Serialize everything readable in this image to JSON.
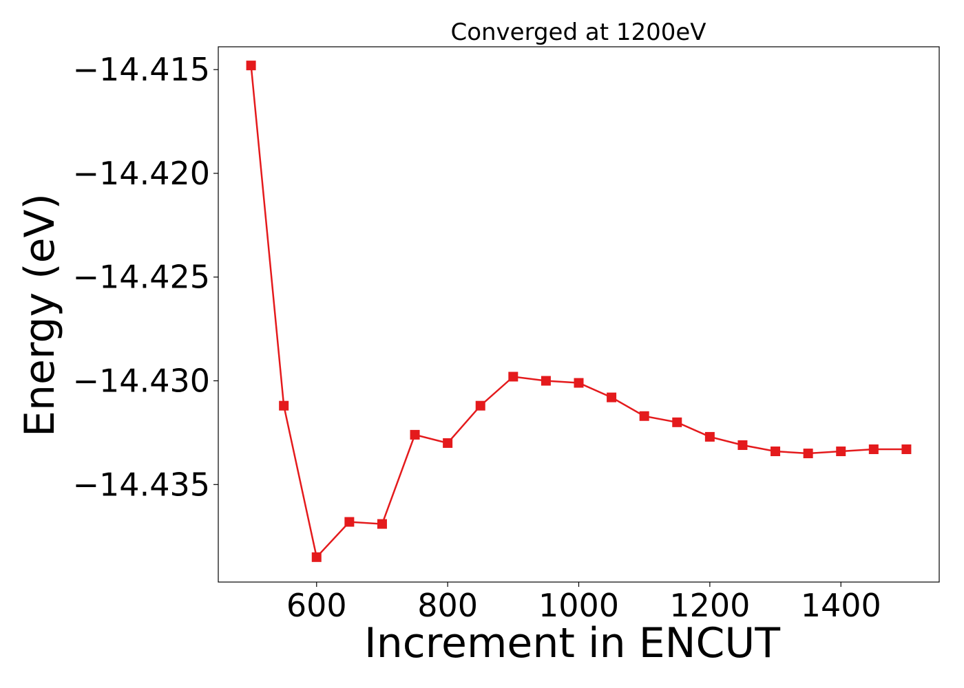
{
  "chart_data": {
    "type": "line",
    "title": "Converged at 1200eV",
    "xlabel": "Increment in ENCUT",
    "ylabel": "Energy (eV)",
    "xlim": [
      450,
      1550
    ],
    "ylim": [
      -14.4397,
      -14.4139
    ],
    "xticks": [
      600,
      800,
      1000,
      1200,
      1400
    ],
    "yticks": [
      -14.415,
      -14.42,
      -14.425,
      -14.43,
      -14.435
    ],
    "ytick_labels": [
      "−14.415",
      "−14.420",
      "−14.425",
      "−14.430",
      "−14.435"
    ],
    "grid": false,
    "marker": "square",
    "color": "#e41a1c",
    "series": [
      {
        "x": [
          500,
          550,
          600,
          650,
          700,
          750,
          800,
          850,
          900,
          950,
          1000,
          1050,
          1100,
          1150,
          1200,
          1250,
          1300,
          1350,
          1400,
          1450,
          1500
        ],
        "values": [
          -14.4148,
          -14.4312,
          -14.4385,
          -14.4368,
          -14.4369,
          -14.4326,
          -14.433,
          -14.4312,
          -14.4298,
          -14.43,
          -14.4301,
          -14.4308,
          -14.4317,
          -14.432,
          -14.4327,
          -14.4331,
          -14.4334,
          -14.4335,
          -14.4334,
          -14.4333,
          -14.4333
        ]
      }
    ]
  }
}
